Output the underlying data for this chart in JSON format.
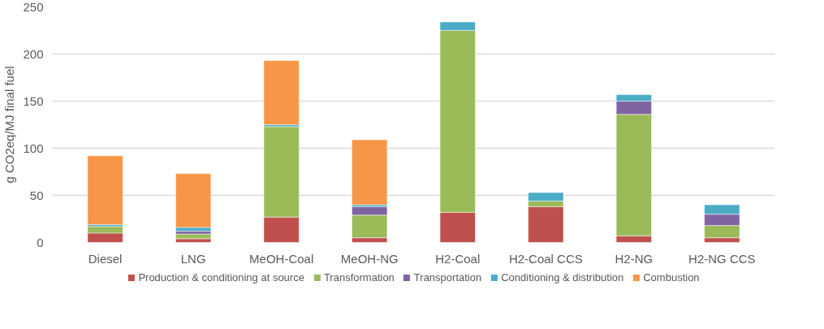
{
  "chart_data": {
    "type": "bar",
    "stacked": true,
    "ylabel": "g CO2eq/MJ final fuel",
    "categories": [
      "Diesel",
      "LNG",
      "MeOH-Coal",
      "MeOH-NG",
      "H2-Coal",
      "H2-Coal CCS",
      "H2-NG",
      "H2-NG CCS"
    ],
    "series": [
      {
        "name": "Production & conditioning at source",
        "color": "#c0504d",
        "values": [
          10,
          4,
          27,
          5,
          32,
          38,
          7,
          5
        ]
      },
      {
        "name": "Transformation",
        "color": "#9bbb59",
        "values": [
          7,
          5,
          96,
          24,
          193,
          6,
          129,
          13
        ]
      },
      {
        "name": "Transportation",
        "color": "#8064a2",
        "values": [
          0,
          3,
          0,
          9,
          0,
          0,
          14,
          12
        ]
      },
      {
        "name": "Conditioning & distribution",
        "color": "#4bacc6",
        "values": [
          2,
          4,
          2,
          2,
          9,
          9,
          7,
          10
        ]
      },
      {
        "name": "Combustion",
        "color": "#f79646",
        "values": [
          73,
          57,
          68,
          69,
          0,
          0,
          0,
          0
        ]
      }
    ],
    "ylim": [
      0,
      250
    ],
    "yticks": [
      0,
      50,
      100,
      150,
      200,
      250
    ],
    "grid": "y",
    "legend": "bottom"
  }
}
